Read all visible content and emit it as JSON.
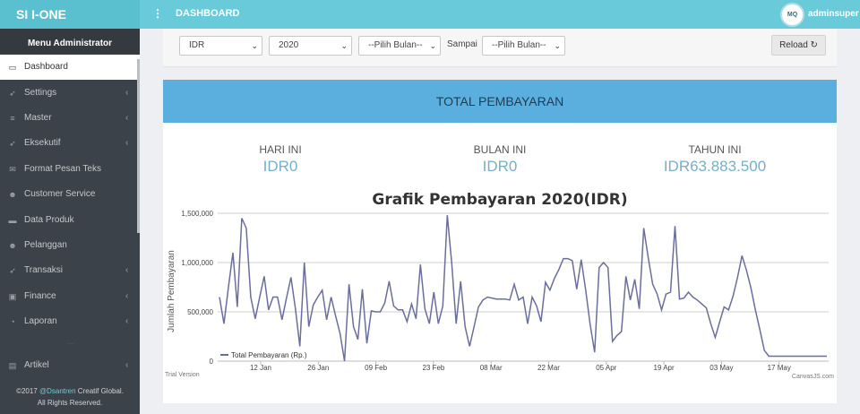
{
  "app": {
    "brand": "SI I-ONE",
    "page_title": "DASHBOARD",
    "user": "adminsuper",
    "avatar_text": "MQ"
  },
  "sidebar": {
    "header": "Menu Administrator",
    "items": [
      {
        "label": "Dashboard",
        "icon": "laptop-icon",
        "glyph": "▭",
        "active": true,
        "chevron": false
      },
      {
        "label": "Settings",
        "icon": "rocket-icon",
        "glyph": "➶",
        "active": false,
        "chevron": true
      },
      {
        "label": "Master",
        "icon": "database-icon",
        "glyph": "≡",
        "active": false,
        "chevron": true
      },
      {
        "label": "Eksekutif",
        "icon": "rocket-icon",
        "glyph": "➶",
        "active": false,
        "chevron": true
      },
      {
        "label": "Format Pesan Teks",
        "icon": "envelope-icon",
        "glyph": "✉",
        "active": false,
        "chevron": false
      },
      {
        "label": "Customer Service",
        "icon": "users-icon",
        "glyph": "☻",
        "active": false,
        "chevron": false
      },
      {
        "label": "Data Produk",
        "icon": "folder-icon",
        "glyph": "▬",
        "active": false,
        "chevron": false
      },
      {
        "label": "Pelanggan",
        "icon": "users-icon",
        "glyph": "☻",
        "active": false,
        "chevron": false
      },
      {
        "label": "Transaksi",
        "icon": "rocket-icon",
        "glyph": "➶",
        "active": false,
        "chevron": true
      },
      {
        "label": "Finance",
        "icon": "money-icon",
        "glyph": "▣",
        "active": false,
        "chevron": true
      },
      {
        "label": "Laporan",
        "icon": "pie-chart-icon",
        "glyph": "◔",
        "active": false,
        "chevron": true
      },
      {
        "label": "Artikel",
        "icon": "file-icon",
        "glyph": "▤",
        "active": false,
        "chevron": true
      }
    ],
    "footer_prefix": "©2017 ",
    "footer_link": "@Dsantren",
    "footer_suffix": " Creatif Global.",
    "footer_line2": "All Rights Reserved."
  },
  "filters": {
    "currency": "IDR",
    "year": "2020",
    "month_from": "--Pilih Bulan--",
    "sampai_label": "Sampai",
    "month_to": "--Pilih Bulan--",
    "reload_label": "Reload",
    "reload_icon": "refresh-icon"
  },
  "panel": {
    "title": "TOTAL PEMBAYARAN",
    "stats": [
      {
        "label": "HARI INI",
        "value": "IDR0"
      },
      {
        "label": "BULAN INI",
        "value": "IDR0"
      },
      {
        "label": "TAHUN INI",
        "value": "IDR63.883.500"
      }
    ]
  },
  "chart_data": {
    "type": "line",
    "title": "Grafik Pembayaran 2020(IDR)",
    "ylabel": "Jumlah Pembayaran",
    "ylim": [
      0,
      1500000
    ],
    "yticks": [
      "0",
      "500,000",
      "1,000,000",
      "1,500,000"
    ],
    "xticks": [
      "12 Jan",
      "26 Jan",
      "09 Feb",
      "23 Feb",
      "08 Mar",
      "22 Mar",
      "05 Apr",
      "19 Apr",
      "03 May",
      "17 May"
    ],
    "legend": "Total Pembayaran (Rp.)",
    "legend_position": "bottom-left",
    "grid": true,
    "line_color": "#6a6e9a",
    "watermark_left": "Trial Version",
    "watermark_right": "CanvasJS.com",
    "series": [
      {
        "name": "Total Pembayaran (Rp.)",
        "values": [
          650000,
          380000,
          750000,
          1100000,
          550000,
          1450000,
          1350000,
          650000,
          430000,
          650000,
          860000,
          520000,
          650000,
          650000,
          420000,
          640000,
          850000,
          530000,
          150000,
          1000000,
          350000,
          570000,
          650000,
          720000,
          420000,
          650000,
          460000,
          280000,
          0,
          780000,
          350000,
          220000,
          730000,
          180000,
          510000,
          500000,
          500000,
          590000,
          810000,
          560000,
          520000,
          520000,
          400000,
          580000,
          430000,
          980000,
          530000,
          380000,
          700000,
          380000,
          560000,
          1480000,
          1000000,
          380000,
          810000,
          350000,
          150000,
          350000,
          550000,
          620000,
          650000,
          640000,
          630000,
          630000,
          630000,
          620000,
          780000,
          620000,
          650000,
          380000,
          650000,
          560000,
          400000,
          800000,
          720000,
          840000,
          930000,
          1040000,
          1040000,
          1020000,
          730000,
          1030000,
          720000,
          370000,
          90000,
          950000,
          1000000,
          950000,
          200000,
          260000,
          300000,
          860000,
          620000,
          830000,
          530000,
          1350000,
          1050000,
          780000,
          680000,
          520000,
          680000,
          700000,
          1370000,
          630000,
          640000,
          700000,
          650000,
          620000,
          580000,
          540000,
          380000,
          240000,
          400000,
          550000,
          520000,
          660000,
          850000,
          1070000,
          920000,
          740000,
          520000,
          320000,
          110000,
          50000,
          50000,
          50000,
          50000,
          50000,
          50000,
          50000,
          50000,
          50000,
          50000,
          50000,
          50000,
          50000,
          50000
        ]
      }
    ]
  }
}
